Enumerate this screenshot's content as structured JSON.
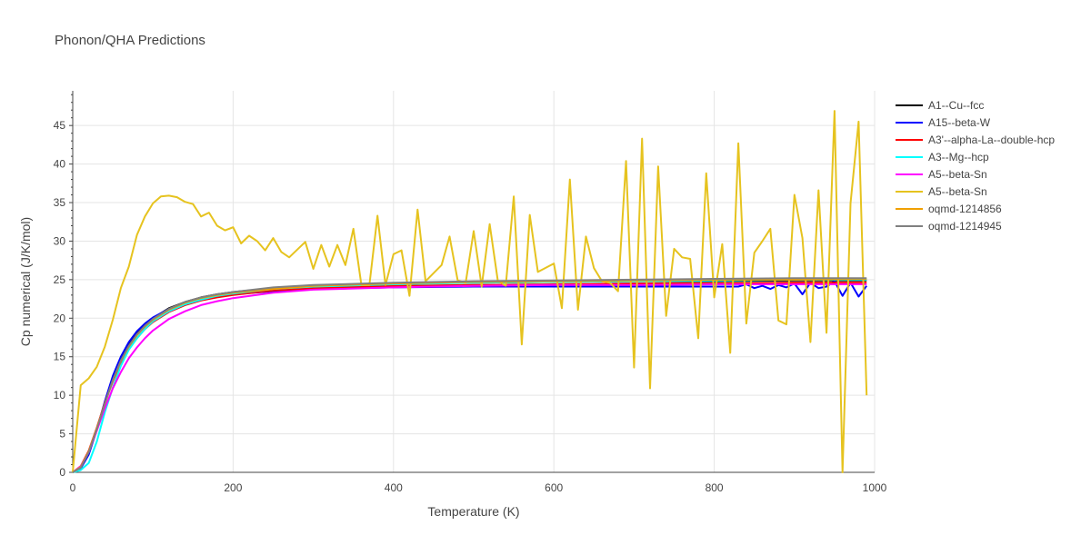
{
  "chart_data": {
    "type": "line",
    "title": "Phonon/QHA Predictions",
    "xlabel": "Temperature (K)",
    "ylabel": "Cp numerical (J/K/mol)",
    "xlim": [
      0,
      1000
    ],
    "ylim": [
      0,
      49.5
    ],
    "xticks": [
      0,
      200,
      400,
      600,
      800,
      1000
    ],
    "yticks": [
      0,
      5,
      10,
      15,
      20,
      25,
      30,
      35,
      40,
      45
    ],
    "grid": true,
    "legend_position": "right",
    "series": [
      {
        "name": "A1--Cu--fcc",
        "color": "#000000",
        "x": [
          0,
          10,
          20,
          30,
          40,
          50,
          60,
          70,
          80,
          90,
          100,
          120,
          140,
          160,
          180,
          200,
          250,
          300,
          400,
          500,
          600,
          700,
          800,
          900,
          990
        ],
        "y": [
          0,
          0.6,
          2.5,
          5.6,
          9.0,
          12.1,
          14.6,
          16.5,
          18.0,
          19.1,
          20.0,
          21.3,
          22.1,
          22.7,
          23.1,
          23.4,
          23.9,
          24.2,
          24.5,
          24.6,
          24.7,
          24.8,
          24.8,
          24.9,
          24.9
        ]
      },
      {
        "name": "A15--beta-W",
        "color": "#0000ff",
        "x": [
          0,
          10,
          20,
          30,
          40,
          50,
          60,
          70,
          80,
          90,
          100,
          120,
          140,
          160,
          180,
          200,
          250,
          300,
          400,
          500,
          600,
          700,
          800,
          830,
          840,
          850,
          860,
          870,
          880,
          890,
          900,
          910,
          920,
          930,
          940,
          950,
          960,
          970,
          980,
          990
        ],
        "y": [
          0,
          0.5,
          2.3,
          5.5,
          9.2,
          12.5,
          15.0,
          16.9,
          18.3,
          19.3,
          20.1,
          21.2,
          21.9,
          22.4,
          22.8,
          23.1,
          23.5,
          23.8,
          24.0,
          24.1,
          24.1,
          24.1,
          24.1,
          24.1,
          24.4,
          23.9,
          24.2,
          23.8,
          24.3,
          24.0,
          24.5,
          23.1,
          24.6,
          23.9,
          24.1,
          24.8,
          22.9,
          24.6,
          22.8,
          24.2
        ]
      },
      {
        "name": "A3'--alpha-La--double-hcp",
        "color": "#ff0000",
        "x": [
          0,
          10,
          20,
          30,
          40,
          50,
          60,
          70,
          80,
          90,
          100,
          120,
          140,
          160,
          180,
          200,
          250,
          300,
          400,
          500,
          600,
          700,
          800,
          900,
          990
        ],
        "y": [
          0,
          0.8,
          2.8,
          5.8,
          9.0,
          11.8,
          14.2,
          16.0,
          17.4,
          18.6,
          19.5,
          20.8,
          21.7,
          22.3,
          22.7,
          23.0,
          23.6,
          23.9,
          24.2,
          24.3,
          24.4,
          24.5,
          24.5,
          24.6,
          24.6
        ]
      },
      {
        "name": "A3--Mg--hcp",
        "color": "#00ffff",
        "x": [
          0,
          10,
          20,
          30,
          40,
          50,
          60,
          70,
          80,
          90,
          100,
          120,
          140,
          160,
          180,
          200,
          250,
          300,
          400,
          500,
          600,
          700,
          800,
          900,
          990
        ],
        "y": [
          0,
          0.3,
          1.2,
          4.0,
          7.8,
          11.0,
          13.8,
          15.9,
          17.4,
          18.6,
          19.6,
          20.9,
          21.8,
          22.4,
          22.9,
          23.2,
          23.8,
          24.1,
          24.4,
          24.6,
          24.7,
          24.8,
          24.9,
          25.0,
          25.0
        ]
      },
      {
        "name": "A5--beta-Sn",
        "color": "#ff00ff",
        "x": [
          0,
          10,
          20,
          30,
          40,
          50,
          60,
          70,
          80,
          90,
          100,
          120,
          140,
          160,
          180,
          200,
          250,
          300,
          400,
          500,
          600,
          700,
          800,
          900,
          990
        ],
        "y": [
          0,
          0.8,
          2.6,
          5.4,
          8.3,
          10.9,
          13.0,
          14.8,
          16.2,
          17.4,
          18.4,
          19.9,
          20.9,
          21.7,
          22.2,
          22.6,
          23.3,
          23.7,
          24.0,
          24.2,
          24.3,
          24.3,
          24.4,
          24.4,
          24.4
        ]
      },
      {
        "name": "A5--beta-Sn",
        "color": "#e6c31f",
        "x": [
          0,
          10,
          20,
          30,
          40,
          50,
          60,
          70,
          80,
          90,
          100,
          110,
          120,
          130,
          140,
          150,
          160,
          170,
          180,
          190,
          200,
          210,
          220,
          230,
          240,
          250,
          260,
          270,
          290,
          300,
          310,
          320,
          330,
          340,
          350,
          360,
          370,
          380,
          390,
          400,
          410,
          420,
          430,
          440,
          460,
          470,
          480,
          490,
          500,
          510,
          520,
          530,
          540,
          550,
          560,
          570,
          580,
          600,
          610,
          620,
          630,
          640,
          650,
          660,
          670,
          680,
          690,
          700,
          710,
          720,
          730,
          740,
          750,
          760,
          770,
          780,
          790,
          800,
          810,
          820,
          830,
          840,
          850,
          860,
          870,
          880,
          890,
          900,
          910,
          920,
          930,
          940,
          950,
          960,
          970,
          980,
          990
        ],
        "y": [
          0,
          11.3,
          12.2,
          13.7,
          16.3,
          19.8,
          23.9,
          26.7,
          30.8,
          33.2,
          34.9,
          35.8,
          35.9,
          35.7,
          35.1,
          34.8,
          33.2,
          33.7,
          32.0,
          31.4,
          31.8,
          29.7,
          30.7,
          30.0,
          28.8,
          30.4,
          28.6,
          27.9,
          29.9,
          26.4,
          29.5,
          26.7,
          29.5,
          26.9,
          31.6,
          24.3,
          24.3,
          33.3,
          24.3,
          28.3,
          28.8,
          22.9,
          34.1,
          24.8,
          26.9,
          30.6,
          24.9,
          24.6,
          31.3,
          24.1,
          32.2,
          24.9,
          24.2,
          35.8,
          16.6,
          33.4,
          26.0,
          27.1,
          21.3,
          38.0,
          21.1,
          30.6,
          26.5,
          24.8,
          24.6,
          23.5,
          40.4,
          13.6,
          43.3,
          10.9,
          39.7,
          20.3,
          29.0,
          27.9,
          27.7,
          17.4,
          38.8,
          22.7,
          29.6,
          15.5,
          42.7,
          19.3,
          28.5,
          30.0,
          31.6,
          19.7,
          19.2,
          36.0,
          30.4,
          16.9,
          36.6,
          18.1,
          46.9,
          0,
          34.9,
          45.5,
          10.0
        ]
      },
      {
        "name": "oqmd-1214856",
        "color": "#f0a000",
        "x": [
          0,
          10,
          20,
          30,
          40,
          50,
          60,
          70,
          80,
          90,
          100,
          120,
          140,
          160,
          180,
          200,
          250,
          300,
          400,
          500,
          600,
          700,
          800,
          900,
          990
        ],
        "y": [
          0,
          0.7,
          2.7,
          5.7,
          8.9,
          11.9,
          14.4,
          16.3,
          17.8,
          18.9,
          19.8,
          21.1,
          22.0,
          22.6,
          23.0,
          23.3,
          23.8,
          24.2,
          24.5,
          24.7,
          24.8,
          24.9,
          25.0,
          25.0,
          25.1
        ]
      },
      {
        "name": "oqmd-1214945",
        "color": "#808080",
        "x": [
          0,
          10,
          20,
          30,
          40,
          50,
          60,
          70,
          80,
          90,
          100,
          120,
          140,
          160,
          180,
          200,
          250,
          300,
          400,
          500,
          600,
          700,
          800,
          900,
          990
        ],
        "y": [
          0,
          0.6,
          2.6,
          5.6,
          8.9,
          12.0,
          14.5,
          16.4,
          17.9,
          19.0,
          19.9,
          21.2,
          22.1,
          22.7,
          23.1,
          23.4,
          24.0,
          24.3,
          24.6,
          24.8,
          24.9,
          25.0,
          25.1,
          25.2,
          25.2
        ]
      }
    ]
  }
}
